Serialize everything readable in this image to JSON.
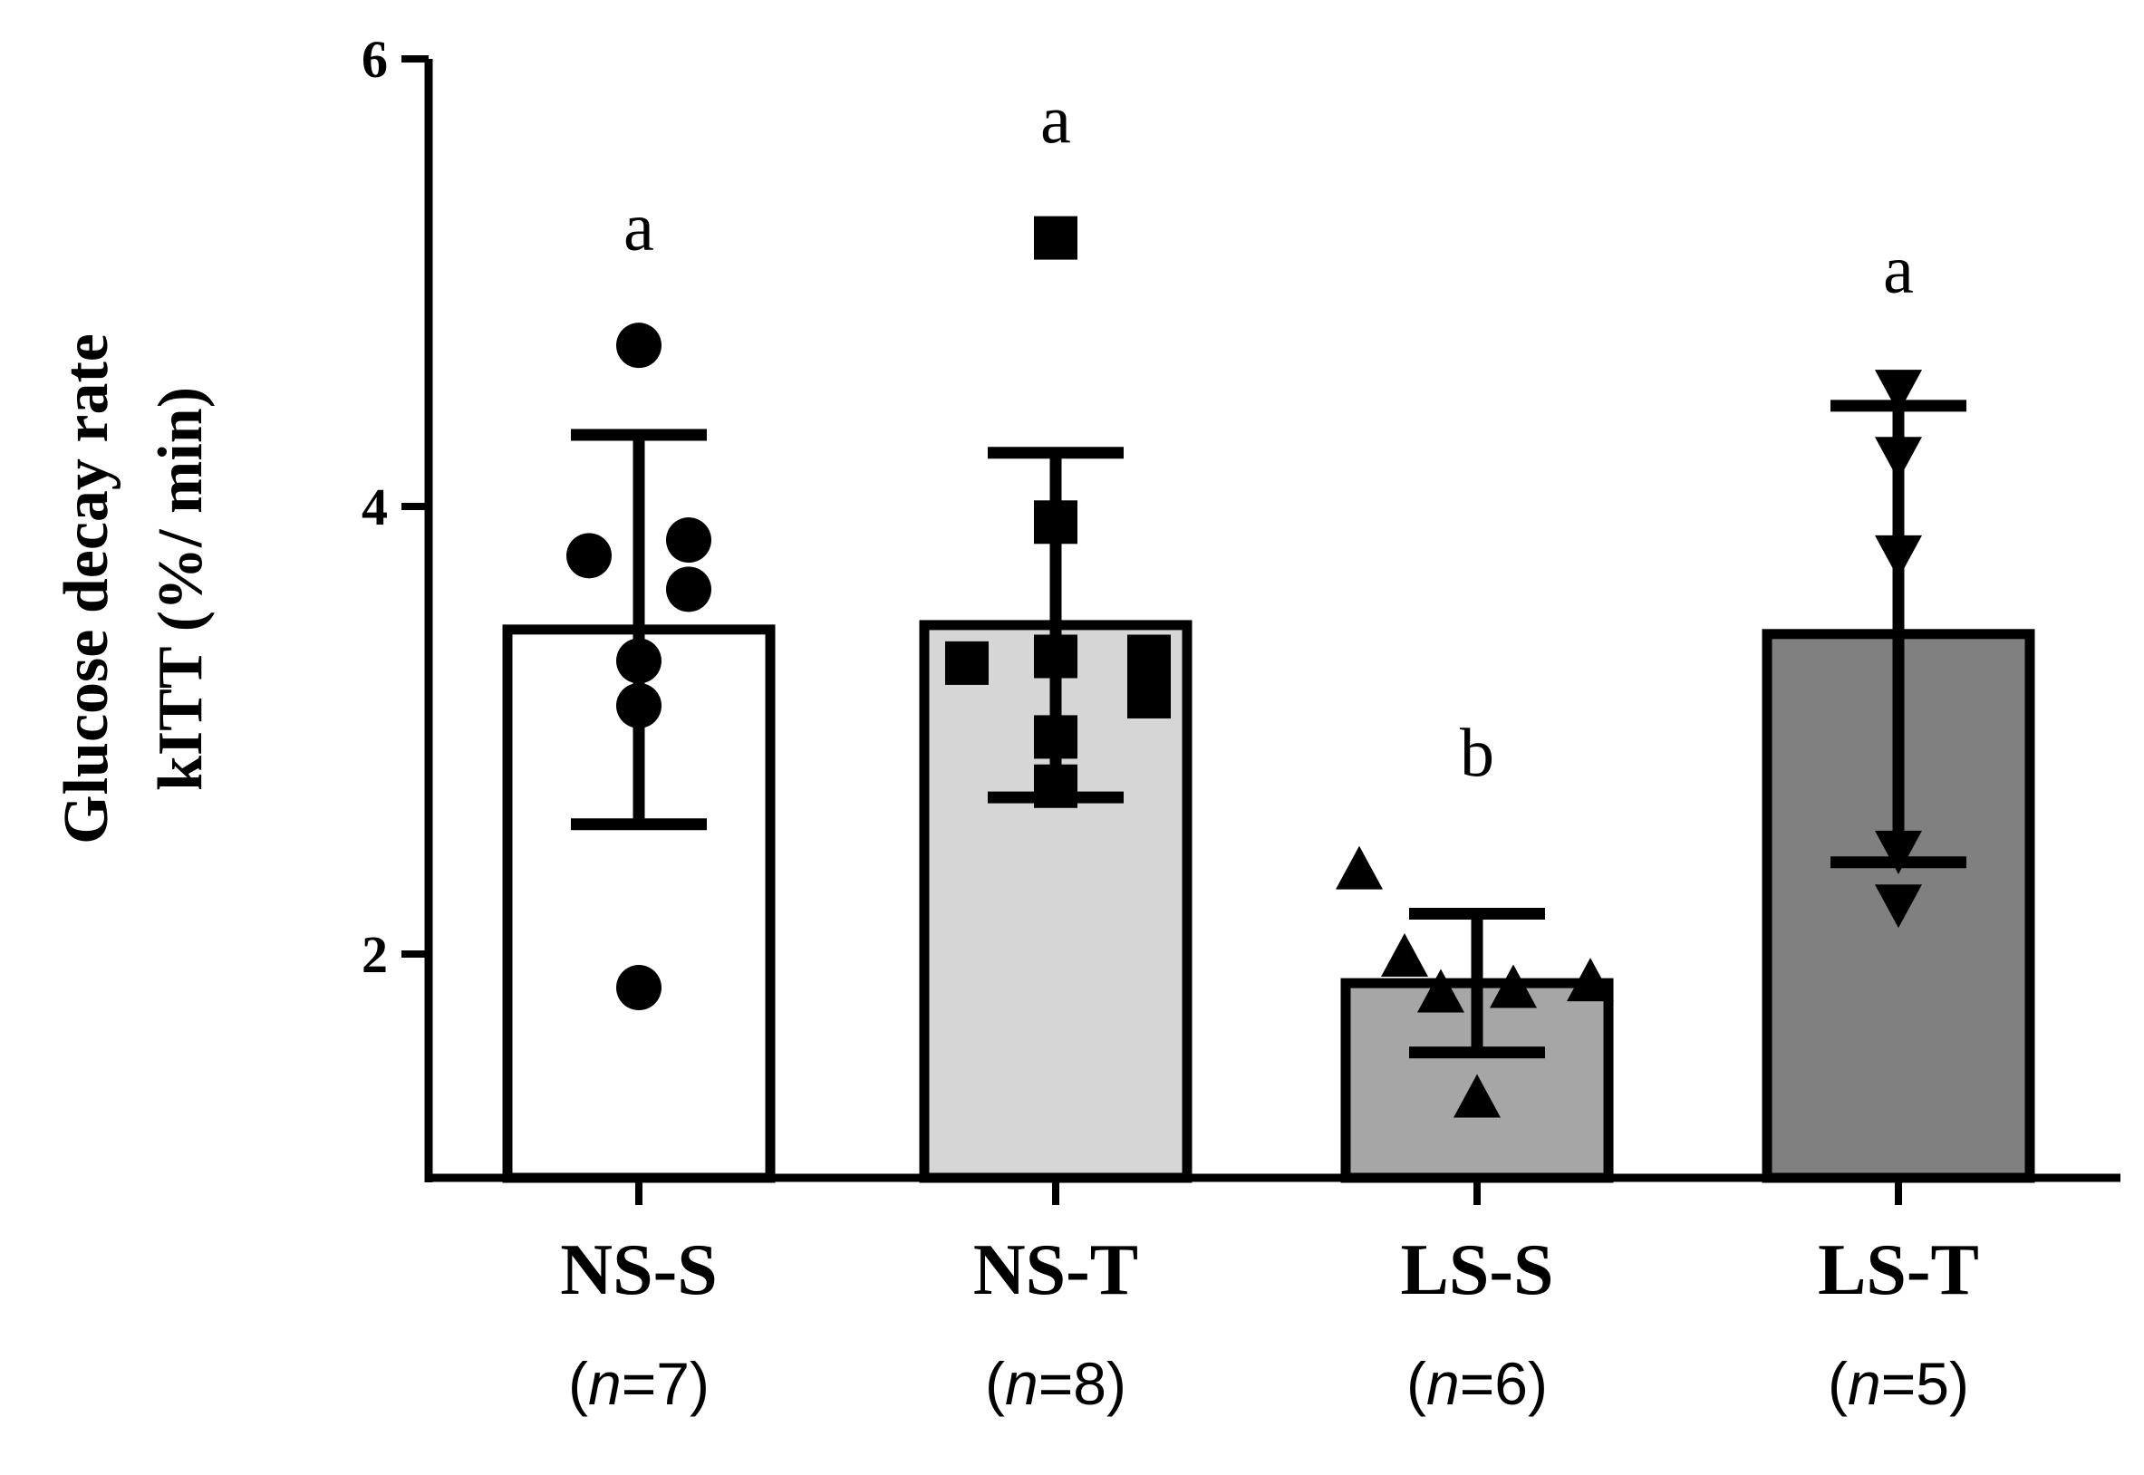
{
  "chart_data": {
    "type": "bar",
    "ylabel_line1": "Glucose decay rate",
    "ylabel_line2": "kITT (%/ min)",
    "ylim": [
      1,
      6
    ],
    "yticks": [
      2,
      4,
      6
    ],
    "grid": false,
    "categories": [
      "NS-S",
      "NS-T",
      "LS-S",
      "LS-T"
    ],
    "n_labels": [
      {
        "n": "n",
        "value": "=7"
      },
      {
        "n": "n",
        "value": "=8"
      },
      {
        "n": "n",
        "value": "=6"
      },
      {
        "n": "n",
        "value": "=5"
      }
    ],
    "means": [
      3.45,
      3.47,
      1.87,
      3.43
    ],
    "sd": [
      0.87,
      0.77,
      0.31,
      1.02
    ],
    "significance": [
      "a",
      "a",
      "b",
      "a"
    ],
    "bar_colors": [
      "#ffffff",
      "#d6d6d6",
      "#a6a6a6",
      "#808080"
    ],
    "markers": [
      "circle",
      "square",
      "triangle-up",
      "triangle-down"
    ],
    "points": [
      [
        4.72,
        3.78,
        3.85,
        3.63,
        3.31,
        3.11,
        1.85
      ],
      [
        5.2,
        3.93,
        3.3,
        3.33,
        3.33,
        3.15,
        2.97,
        2.75
      ],
      [
        2.37,
        1.98,
        1.84,
        1.87,
        1.82,
        1.35
      ],
      [
        4.53,
        4.23,
        3.79,
        2.47,
        2.23
      ]
    ]
  }
}
